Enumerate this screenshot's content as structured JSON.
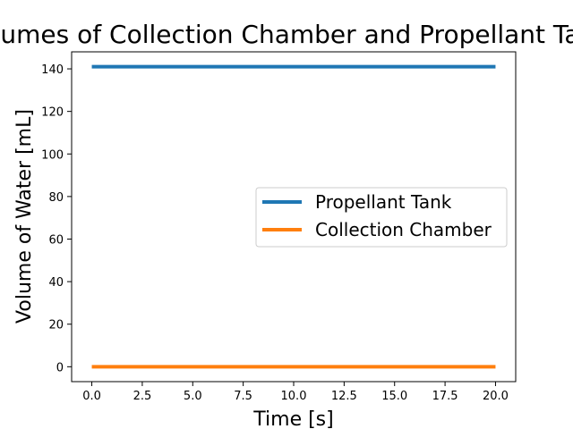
{
  "chart_data": {
    "type": "line",
    "title": "Volumes of Collection Chamber and Propellant Tank",
    "xlabel": "Time [s]",
    "ylabel": "Volume of Water [mL]",
    "xlim": [
      -1,
      21
    ],
    "ylim": [
      -7,
      148
    ],
    "x_ticks": [
      0.0,
      2.5,
      5.0,
      7.5,
      10.0,
      12.5,
      15.0,
      17.5,
      20.0
    ],
    "x_tick_labels": [
      "0.0",
      "2.5",
      "5.0",
      "7.5",
      "10.0",
      "12.5",
      "15.0",
      "17.5",
      "20.0"
    ],
    "y_ticks": [
      0,
      20,
      40,
      60,
      80,
      100,
      120,
      140
    ],
    "y_tick_labels": [
      "0",
      "20",
      "40",
      "60",
      "80",
      "100",
      "120",
      "140"
    ],
    "grid": false,
    "legend_position": "center-right",
    "series": [
      {
        "name": "Propellant Tank",
        "color": "#1f77b4",
        "x": [
          0,
          20
        ],
        "y": [
          141,
          141
        ]
      },
      {
        "name": "Collection Chamber",
        "color": "#ff7f0e",
        "x": [
          0,
          20
        ],
        "y": [
          0,
          0
        ]
      }
    ]
  }
}
